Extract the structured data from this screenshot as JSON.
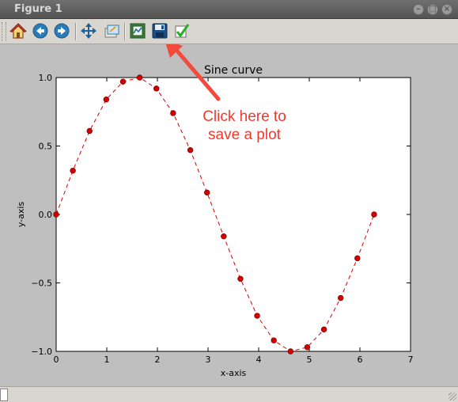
{
  "window": {
    "title": "Figure 1"
  },
  "toolbar": {
    "items": [
      {
        "name": "home-icon"
      },
      {
        "name": "back-icon"
      },
      {
        "name": "forward-icon"
      },
      {
        "name": "pan-icon"
      },
      {
        "name": "zoom-icon"
      },
      {
        "name": "subplots-config-icon"
      },
      {
        "name": "save-icon"
      },
      {
        "name": "edit-parameters-icon"
      }
    ],
    "accent": "#2a7bb8"
  },
  "annotation": {
    "line1": "Click here to",
    "line2": "save a plot",
    "color": "#f0392f"
  },
  "chart_data": {
    "type": "line",
    "title": "Sine curve",
    "xlabel": "x-axis",
    "ylabel": "y-axis",
    "xlim": [
      0,
      7
    ],
    "ylim": [
      -1.0,
      1.0
    ],
    "xticks": [
      "0",
      "1",
      "2",
      "3",
      "4",
      "5",
      "6",
      "7"
    ],
    "yticks": [
      "1.0",
      "0.5",
      "0.0",
      "−0.5",
      "−1.0"
    ],
    "grid": false,
    "line_style": "dashed",
    "marker": "circle",
    "series_color": "#d40000",
    "x": [
      0.0,
      0.33,
      0.66,
      0.99,
      1.32,
      1.65,
      1.98,
      2.31,
      2.65,
      2.98,
      3.31,
      3.64,
      3.97,
      4.3,
      4.63,
      4.96,
      5.29,
      5.62,
      5.95,
      6.28
    ],
    "y": [
      0.0,
      0.32,
      0.61,
      0.84,
      0.97,
      1.0,
      0.92,
      0.74,
      0.47,
      0.16,
      -0.16,
      -0.47,
      -0.74,
      -0.92,
      -1.0,
      -0.97,
      -0.84,
      -0.61,
      -0.32,
      0.0
    ]
  }
}
